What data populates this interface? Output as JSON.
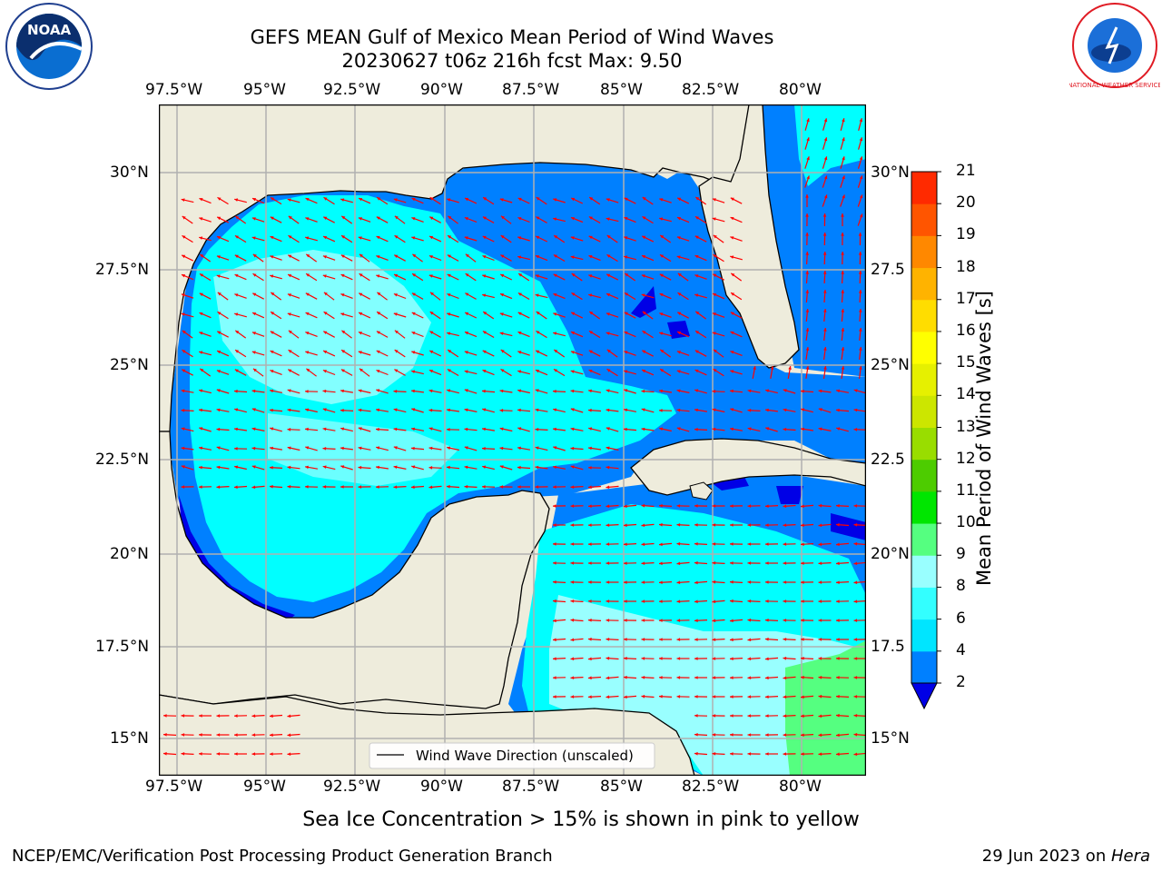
{
  "header": {
    "title_line1": "GEFS MEAN Gulf of Mexico Mean Period of Wind Waves",
    "title_line2": "20230627 t06z 216h fcst   Max: 9.50"
  },
  "logos": {
    "left_text": "NOAA",
    "right_text": "NATIONAL WEATHER SERVICE"
  },
  "map": {
    "lon_ticks": [
      "97.5°W",
      "95°W",
      "92.5°W",
      "90°W",
      "87.5°W",
      "85°W",
      "82.5°W",
      "80°W"
    ],
    "lat_ticks_left": [
      "30°N",
      "27.5°N",
      "25°N",
      "22.5°N",
      "20°N",
      "17.5°N",
      "15°N"
    ],
    "lat_ticks_right": [
      "30°N",
      "27.5",
      "25°N",
      "22.5",
      "20°N",
      "17.5",
      "15°N"
    ],
    "legend_label": "Wind Wave Direction (unscaled)",
    "colors": {
      "land": "#eeecdc",
      "ocean_dark": "#0000e6",
      "ocean_blue": "#0080ff",
      "ocean_cyan": "#00ffff",
      "ocean_lightcyan": "#99ffff",
      "ocean_green": "#55ff80",
      "arrow": "#ff0000",
      "grid": "#b0b0b0"
    }
  },
  "colorbar": {
    "label": "Mean Period of Wind Waves [s]",
    "ticks": [
      "2",
      "4",
      "6",
      "8",
      "9",
      "10",
      "11",
      "12",
      "13",
      "14",
      "15",
      "16",
      "17",
      "18",
      "19",
      "20",
      "21"
    ],
    "colors": [
      "#0080ff",
      "#00e5ff",
      "#33ffff",
      "#99ffff",
      "#55ff80",
      "#00e600",
      "#4dcc00",
      "#99dd00",
      "#cce600",
      "#e6f000",
      "#ffff00",
      "#ffdd00",
      "#ffb300",
      "#ff8800",
      "#ff5500",
      "#ff2a00",
      "#ff0000"
    ],
    "extend_color": "#0000e6"
  },
  "caption": "Sea Ice Concentration > 15% is shown in pink to yellow",
  "footer": {
    "left": "NCEP/EMC/Verification Post Processing Product Generation Branch",
    "right_prefix": "29 Jun 2023 on ",
    "right_host": "Hera"
  }
}
